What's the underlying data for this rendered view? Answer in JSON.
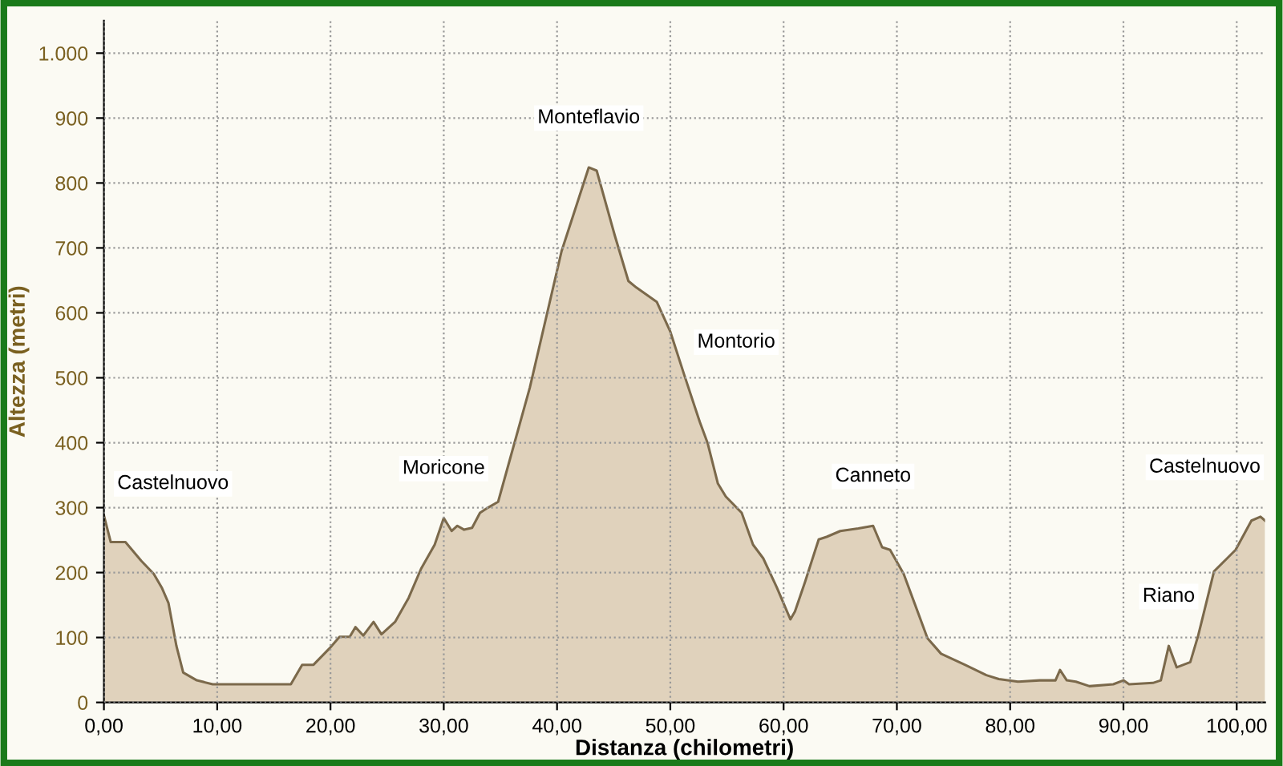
{
  "chart_data": {
    "type": "area",
    "xlabel": "Distanza (chilometri)",
    "ylabel": "Altezza (metri)",
    "xlim": [
      0,
      102.5
    ],
    "ylim": [
      0,
      1050
    ],
    "xticks": [
      {
        "value": 0,
        "label": "0,00"
      },
      {
        "value": 10,
        "label": "10,00"
      },
      {
        "value": 20,
        "label": "20,00"
      },
      {
        "value": 30,
        "label": "30,00"
      },
      {
        "value": 40,
        "label": "40,00"
      },
      {
        "value": 50,
        "label": "50,00"
      },
      {
        "value": 60,
        "label": "60,00"
      },
      {
        "value": 70,
        "label": "70,00"
      },
      {
        "value": 80,
        "label": "80,00"
      },
      {
        "value": 90,
        "label": "90,00"
      },
      {
        "value": 100,
        "label": "100,00"
      }
    ],
    "yticks": [
      0,
      100,
      200,
      300,
      400,
      500,
      600,
      700,
      800,
      900,
      {
        "value": 1000,
        "label": "1.000"
      }
    ],
    "grid": true,
    "series": [
      {
        "color": "#e0d2bc",
        "x": [
          0,
          0.6,
          1.9,
          3.3,
          4.4,
          5.1,
          5.7,
          6.4,
          7.0,
          8.2,
          9.6,
          12,
          16.5,
          17.5,
          18.5,
          19.9,
          20.8,
          21.7,
          22.2,
          22.9,
          23.8,
          24.5,
          25.7,
          26.9,
          28.0,
          29.2,
          30.0,
          30.7,
          31.2,
          31.8,
          32.5,
          33.2,
          33.9,
          34.8,
          37.6,
          40.4,
          42.3,
          42.8,
          43.5,
          45.1,
          46.3,
          47.0,
          48.8,
          50,
          51.2,
          52.6,
          53.3,
          54.2,
          54.9,
          56.3,
          57.3,
          58.2,
          59.4,
          60.6,
          61.0,
          61.9,
          63.1,
          63.8,
          65.0,
          66.6,
          67.9,
          68.7,
          69.4,
          70.6,
          72.7,
          73.9,
          76.0,
          77.9,
          79.0,
          80.7,
          82.6,
          84.0,
          84.4,
          85.0,
          85.8,
          87.0,
          89.1,
          90.0,
          90.5,
          92.6,
          93.3,
          94.0,
          94.7,
          95.9,
          96.6,
          98.0,
          99.9,
          101.3,
          102.1,
          102.5
        ],
        "values": [
          288,
          247,
          247,
          218,
          198,
          177,
          153,
          87,
          46,
          34,
          28,
          28,
          28,
          58,
          58,
          83,
          101,
          101,
          116,
          103,
          124,
          105,
          124,
          161,
          206,
          243,
          284,
          264,
          272,
          266,
          269,
          292,
          300,
          309,
          485,
          695,
          797,
          824,
          819,
          719,
          649,
          639,
          617,
          571,
          506,
          432,
          399,
          337,
          317,
          292,
          243,
          222,
          177,
          128,
          140,
          186,
          251,
          255,
          264,
          268,
          272,
          239,
          235,
          198,
          99,
          75,
          58,
          42,
          36,
          32,
          34,
          34,
          50,
          34,
          32,
          25,
          28,
          34,
          28,
          30,
          34,
          87,
          54,
          62,
          103,
          202,
          235,
          280,
          286,
          280
        ]
      }
    ],
    "annotations": [
      {
        "text": "Castelnuovo",
        "x": 0,
        "y": 288
      },
      {
        "text": "Moricone",
        "x": 30.0,
        "y": 284
      },
      {
        "text": "Monteflavio",
        "x": 42.8,
        "y": 824
      },
      {
        "text": "Montorio",
        "x": 51.2,
        "y": 506
      },
      {
        "text": "Canneto",
        "x": 67.9,
        "y": 272
      },
      {
        "text": "Riano",
        "x": 94.0,
        "y": 87
      },
      {
        "text": "Castelnuovo",
        "x": 102.1,
        "y": 286
      }
    ]
  }
}
